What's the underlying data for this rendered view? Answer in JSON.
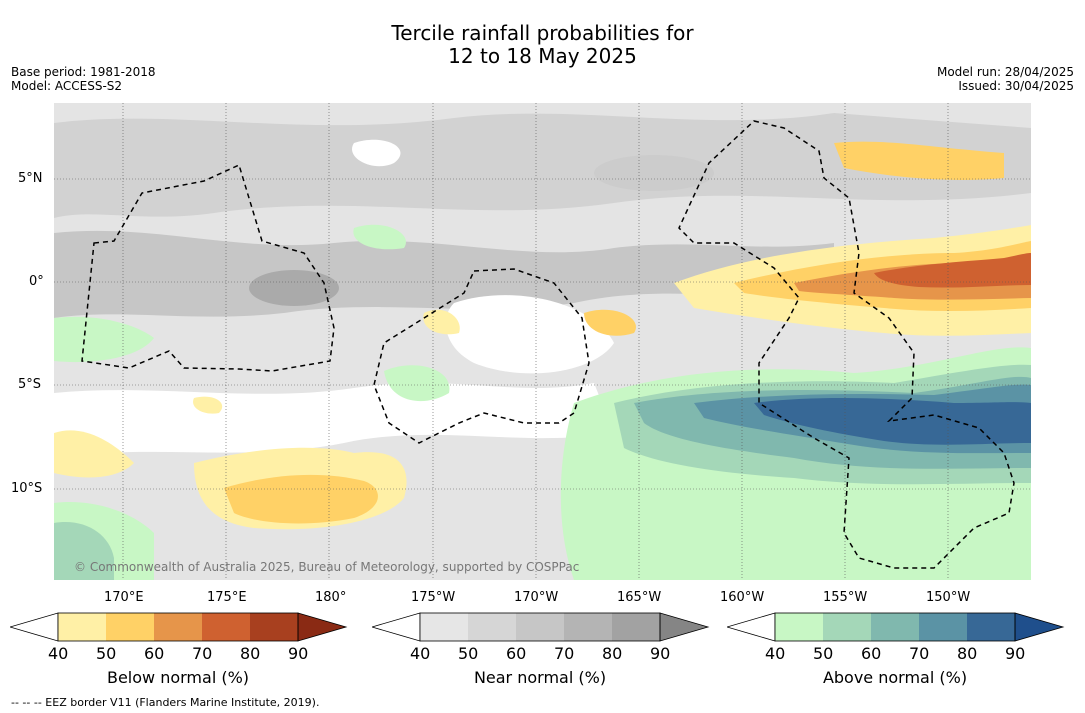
{
  "title_line1": "Tercile rainfall probabilities for",
  "title_line2": "12 to 18 May 2025",
  "meta": {
    "base_period": "Base period: 1981-2018",
    "model": "Model: ACCESS-S2",
    "model_run": "Model run: 28/04/2025",
    "issued": "Issued: 30/04/2025"
  },
  "map": {
    "copyright": "© Commonwealth of Australia 2025, Bureau of Meteorology, supported by COSPPac",
    "lat_labels": [
      "5°N",
      "0°",
      "5°S",
      "10°S"
    ],
    "lon_labels": [
      "170°E",
      "175°E",
      "180°",
      "175°W",
      "170°W",
      "165°W",
      "160°W",
      "155°W",
      "150°W"
    ]
  },
  "colorbars": [
    {
      "label": "Below normal (%)",
      "ticks": [
        "40",
        "50",
        "60",
        "70",
        "80",
        "90"
      ],
      "colors": [
        "#fff0a6",
        "#ffd166",
        "#e6954a",
        "#cf6130",
        "#a8401f",
        "#8a2a14"
      ]
    },
    {
      "label": "Near normal (%)",
      "ticks": [
        "40",
        "50",
        "60",
        "70",
        "80",
        "90"
      ],
      "colors": [
        "#e6e6e6",
        "#d6d6d6",
        "#c6c6c6",
        "#b4b4b4",
        "#a2a2a2",
        "#858585"
      ]
    },
    {
      "label": "Above normal (%)",
      "ticks": [
        "40",
        "50",
        "60",
        "70",
        "80",
        "90"
      ],
      "colors": [
        "#c8f7c5",
        "#a4d7b8",
        "#80b8ae",
        "#5b93a5",
        "#376896",
        "#1f4f8c"
      ]
    }
  ],
  "legend_note": "--  --  -- EEZ border V11 (Flanders Marine Institute, 2019).",
  "colors": {
    "grid": "#555555",
    "eez": "#000000"
  }
}
